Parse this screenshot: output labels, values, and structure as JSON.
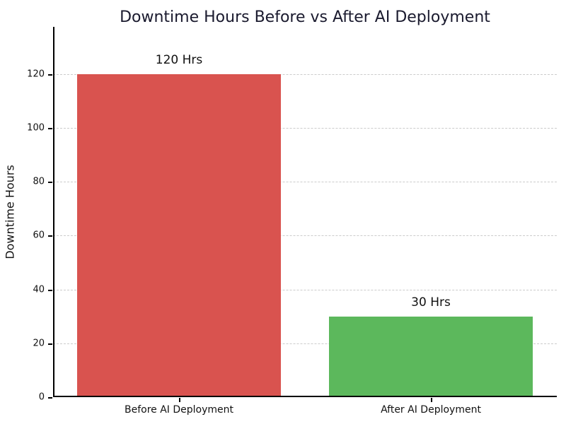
{
  "chart_data": {
    "type": "bar",
    "title": "Downtime Hours Before vs After AI Deployment",
    "xlabel": "",
    "ylabel": "Downtime Hours",
    "categories": [
      "Before AI Deployment",
      "After AI Deployment"
    ],
    "values": [
      120,
      30
    ],
    "bar_labels": [
      "120 Hrs",
      "30 Hrs"
    ],
    "bar_colors": [
      "#d9534f",
      "#5cb85c"
    ],
    "yticks": [
      0,
      20,
      40,
      60,
      80,
      100,
      120
    ],
    "ylim": [
      0,
      137.5
    ],
    "grid": "horizontal-dashed",
    "grid_color": "#cccccc",
    "legend": "none",
    "title_color": "#1a1a2e",
    "axis_color": "#000000",
    "background_color": "#ffffff"
  }
}
